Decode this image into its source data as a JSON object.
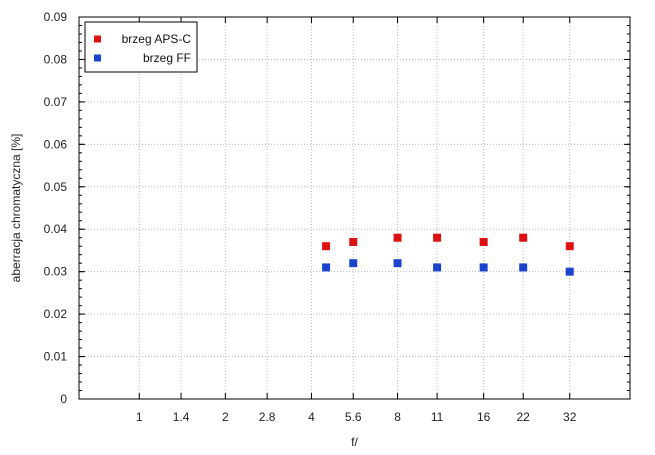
{
  "chart_data": {
    "type": "scatter",
    "title": "",
    "xlabel": "f/",
    "ylabel": "aberracja chromatyczna [%]",
    "x_ticks": [
      "1",
      "1.4",
      "2",
      "2.8",
      "4",
      "5.6",
      "8",
      "11",
      "16",
      "22",
      "32"
    ],
    "ylim": [
      0,
      0.09
    ],
    "y_ticks": [
      "0",
      "0.01",
      "0.02",
      "0.03",
      "0.04",
      "0.05",
      "0.06",
      "0.07",
      "0.08",
      "0.09"
    ],
    "grid": true,
    "legend_position": "top-left",
    "series": [
      {
        "name": "brzeg APS-C",
        "color": "#dd1111",
        "points": [
          {
            "x": 4.5,
            "y": 0.036
          },
          {
            "x": 5.6,
            "y": 0.037
          },
          {
            "x": 8,
            "y": 0.038
          },
          {
            "x": 11,
            "y": 0.038
          },
          {
            "x": 16,
            "y": 0.037
          },
          {
            "x": 22,
            "y": 0.038
          },
          {
            "x": 32,
            "y": 0.036
          }
        ]
      },
      {
        "name": "brzeg FF",
        "color": "#1a44cc",
        "points": [
          {
            "x": 4.5,
            "y": 0.031
          },
          {
            "x": 5.6,
            "y": 0.032
          },
          {
            "x": 8,
            "y": 0.032
          },
          {
            "x": 11,
            "y": 0.031
          },
          {
            "x": 16,
            "y": 0.031
          },
          {
            "x": 22,
            "y": 0.031
          },
          {
            "x": 32,
            "y": 0.03
          }
        ]
      }
    ]
  }
}
